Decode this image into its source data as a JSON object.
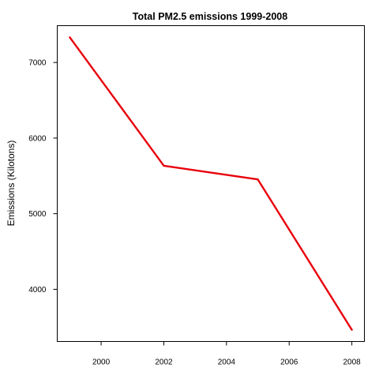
{
  "chart_data": {
    "type": "line",
    "title": "Total PM2.5 emissions 1999-2008",
    "xlabel": "",
    "ylabel": "Emissions (Kilotons)",
    "x": [
      1999,
      2002,
      2005,
      2008
    ],
    "series": [
      {
        "values": [
          7332,
          5635,
          5454,
          3465
        ],
        "color": "#e8000b"
      }
    ],
    "xlim": [
      1998.6,
      2008.4
    ],
    "ylim": [
      3310,
      7487
    ],
    "xticks": [
      2000,
      2002,
      2004,
      2006,
      2008
    ],
    "yticks": [
      4000,
      5000,
      6000,
      7000
    ],
    "grid": false,
    "legend": "none"
  }
}
